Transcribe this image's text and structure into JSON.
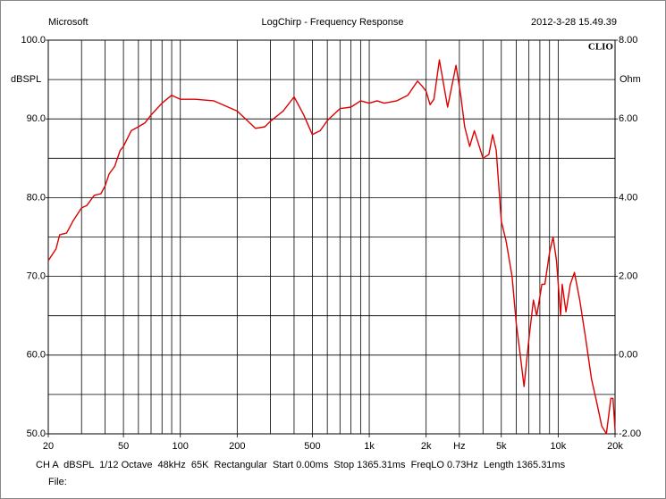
{
  "chart_data": {
    "type": "line",
    "title": "LogChirp - Frequency Response",
    "header_left": "Microsoft",
    "header_right": "2012-3-28 15.49.39",
    "logo": "CLIO",
    "ylabel": "dBSPL",
    "y2label": "Ohm",
    "footer": "CH A  dBSPL  1/12 Octave  48kHz  65K  Rectangular  Start 0.00ms  Stop 1365.31ms  FreqLO 0.73Hz  Length 1365.31ms",
    "file_label": "File:",
    "xscale": "log",
    "xlim": [
      20,
      20000
    ],
    "xticks": [
      20,
      50,
      100,
      200,
      500,
      {
        "value": 1000,
        "label": "1k"
      },
      {
        "value": 2000,
        "label": "2k"
      },
      {
        "value": 3000,
        "label": "Hz"
      },
      {
        "value": 5000,
        "label": "5k"
      },
      {
        "value": 10000,
        "label": "10k"
      },
      {
        "value": 20000,
        "label": "20k"
      }
    ],
    "xgrid": [
      30,
      40,
      50,
      60,
      70,
      80,
      90,
      100,
      200,
      300,
      400,
      500,
      600,
      700,
      800,
      900,
      1000,
      2000,
      3000,
      4000,
      5000,
      6000,
      7000,
      8000,
      9000,
      10000
    ],
    "ylim": [
      50,
      100
    ],
    "yticks": [
      {
        "value": 50,
        "label": "50.0"
      },
      {
        "value": 60,
        "label": "60.0"
      },
      {
        "value": 70,
        "label": "70.0"
      },
      {
        "value": 80,
        "label": "80.0"
      },
      {
        "value": 90,
        "label": "90.0"
      },
      {
        "value": 100,
        "label": "100.0"
      }
    ],
    "ygrid": [
      55,
      60,
      65,
      70,
      75,
      80,
      85,
      90,
      95
    ],
    "y2lim": [
      -2,
      8
    ],
    "y2ticks": [
      {
        "value": -2,
        "label": "-2.00"
      },
      {
        "value": 0,
        "label": "0.00"
      },
      {
        "value": 2,
        "label": "2.00"
      },
      {
        "value": 4,
        "label": "4.00"
      },
      {
        "value": 6,
        "label": "6.00"
      },
      {
        "value": 8,
        "label": "8.00"
      }
    ],
    "grid": true,
    "series": [
      {
        "name": "CH A",
        "color": "#dd0000",
        "x": [
          20,
          22,
          23,
          25,
          27,
          30,
          32,
          35,
          38,
          40,
          42,
          45,
          48,
          50,
          55,
          60,
          65,
          70,
          80,
          90,
          100,
          120,
          150,
          200,
          250,
          280,
          300,
          350,
          400,
          450,
          500,
          550,
          600,
          700,
          800,
          900,
          1000,
          1100,
          1200,
          1400,
          1600,
          1800,
          1900,
          2000,
          2100,
          2200,
          2350,
          2600,
          2880,
          3050,
          3200,
          3400,
          3600,
          4000,
          4300,
          4500,
          4700,
          5000,
          5300,
          5700,
          6000,
          6300,
          6600,
          7000,
          7400,
          7700,
          8200,
          8500,
          9000,
          9400,
          9800,
          10300,
          10500,
          11000,
          11600,
          12200,
          13000,
          14000,
          15000,
          16000,
          17000,
          18000,
          19000,
          19500,
          20000
        ],
        "values": [
          72,
          73.5,
          75.3,
          75.5,
          77,
          78.7,
          79,
          80.3,
          80.5,
          81.5,
          83,
          84,
          86,
          86.5,
          88.5,
          89,
          89.5,
          90.5,
          92,
          93,
          92.5,
          92.5,
          92.3,
          91,
          88.8,
          89,
          89.7,
          91,
          92.8,
          90.5,
          88,
          88.5,
          89.8,
          91.3,
          91.5,
          92.3,
          92,
          92.3,
          92,
          92.3,
          93,
          94.8,
          94.2,
          93.5,
          91.8,
          92.5,
          97.5,
          91.5,
          96.8,
          93,
          89,
          86.5,
          88.5,
          85,
          85.5,
          88,
          86,
          77,
          74.5,
          70,
          64,
          60,
          56,
          62,
          67,
          65,
          69,
          69,
          73,
          75,
          72,
          65,
          69,
          65.5,
          69,
          70.5,
          67,
          62,
          57,
          54,
          51,
          50,
          54.5,
          54.5,
          50.5
        ]
      }
    ]
  }
}
